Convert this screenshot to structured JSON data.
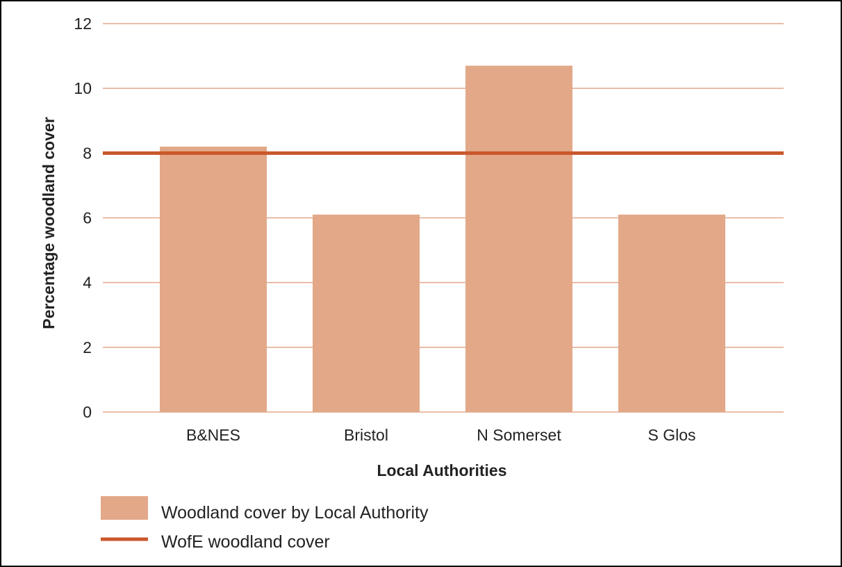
{
  "chart_data": {
    "type": "bar",
    "categories": [
      "B&NES",
      "Bristol",
      "N Somerset",
      "S Glos"
    ],
    "series": [
      {
        "name": "Woodland cover by Local Authority",
        "values": [
          8.2,
          6.1,
          10.7,
          6.1
        ]
      }
    ],
    "reference_lines": [
      {
        "name": "WofE woodland cover",
        "value": 8.0
      }
    ],
    "title": "",
    "xlabel": "Local Authorities",
    "ylabel": "Percentage woodland cover",
    "ylim": [
      0,
      12
    ],
    "yticks": [
      0,
      2,
      4,
      6,
      8,
      10,
      12
    ],
    "grid": true,
    "legend_position": "bottom-left",
    "colors": {
      "bar": "#e2a888",
      "reference_line": "#c9572b",
      "grid": "#e2a888"
    }
  }
}
